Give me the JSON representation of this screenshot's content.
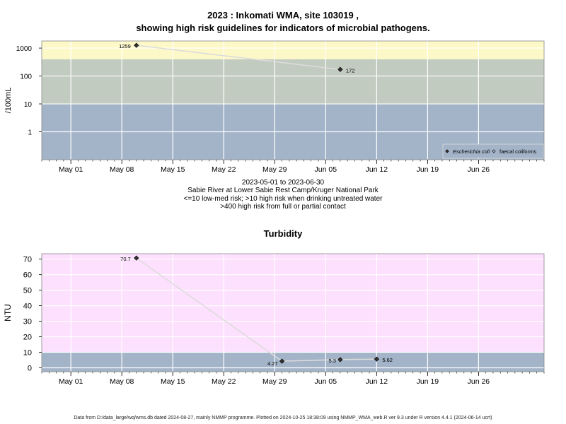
{
  "header": {
    "title_line1": "2023 : Inkomati WMA, site 103019 ,",
    "title_line2": "showing high risk guidelines for indicators of microbial pathogens."
  },
  "microbial_caption": {
    "date_range": "2023-05-01 to 2023-06-30",
    "site_name": "Sabie River at Lower Sabie Rest Camp/Kruger National Park",
    "guideline_1": "<=10 low-med risk; >10 high risk when drinking untreated water",
    "guideline_2": ">400 high risk from full or partial contact"
  },
  "turbidity_title": "Turbidity",
  "footer": "Data from D:/data_large/wq/wms.db dated 2024-08-27, mainly NMMP programme. Plotted on 2024-10-25 18:38:09 using NMMP_WMA_web.R ver 9.3 under R version 4.4.1 (2024-06-14 ucrt)",
  "colors": {
    "band_yellow": "#fdf8c8",
    "band_green": "#c2cbbf",
    "band_blue": "#a3b3c8",
    "band_pink": "#fde0fd",
    "grid": "#ffffff",
    "line": "#dcdcdc",
    "point": "#333333"
  },
  "chart_data": [
    {
      "type": "line",
      "ylabel": "/100mL",
      "y_scale": "log",
      "ylim": [
        0.1,
        1800
      ],
      "yticks": [
        1,
        10,
        100,
        1000
      ],
      "ytick_labels": [
        "1",
        "10",
        "100",
        "1000"
      ],
      "xlim": [
        "2023-04-27",
        "2023-07-05"
      ],
      "xticks": [
        "2023-05-01",
        "2023-05-08",
        "2023-05-15",
        "2023-05-22",
        "2023-05-29",
        "2023-06-05",
        "2023-06-12",
        "2023-06-19",
        "2023-06-26"
      ],
      "xtick_labels": [
        "May 01",
        "May 08",
        "May 15",
        "May 22",
        "May 29",
        "Jun 05",
        "Jun 12",
        "Jun 19",
        "Jun 26"
      ],
      "bands": [
        {
          "from": 0.1,
          "to": 10,
          "color": "blue"
        },
        {
          "from": 10,
          "to": 400,
          "color": "green"
        },
        {
          "from": 400,
          "to": 1800,
          "color": "yellow"
        }
      ],
      "series": [
        {
          "name": "Escherichia coli",
          "marker": "filled-diamond",
          "x": [
            "2023-05-10",
            "2023-06-07"
          ],
          "y": [
            1259,
            172
          ],
          "labels": [
            "1259",
            "172"
          ]
        },
        {
          "name": "faecal coliforms",
          "marker": "open-diamond",
          "x": [],
          "y": [],
          "labels": []
        }
      ],
      "grid": true,
      "legend_position": "bottom-right"
    },
    {
      "type": "line",
      "ylabel": "NTU",
      "ylim": [
        -2.5,
        73.5
      ],
      "yticks": [
        0,
        10,
        20,
        30,
        40,
        50,
        60,
        70
      ],
      "ytick_labels": [
        "0",
        "10",
        "20",
        "30",
        "40",
        "50",
        "60",
        "70"
      ],
      "xlim": [
        "2023-04-27",
        "2023-07-05"
      ],
      "xticks": [
        "2023-05-01",
        "2023-05-08",
        "2023-05-15",
        "2023-05-22",
        "2023-05-29",
        "2023-06-05",
        "2023-06-12",
        "2023-06-19",
        "2023-06-26"
      ],
      "xtick_labels": [
        "May 01",
        "May 08",
        "May 15",
        "May 22",
        "May 29",
        "Jun 05",
        "Jun 12",
        "Jun 19",
        "Jun 26"
      ],
      "bands": [
        {
          "from": -2.5,
          "to": 10,
          "color": "blue"
        },
        {
          "from": 10,
          "to": 73.5,
          "color": "pink"
        }
      ],
      "series": [
        {
          "x": [
            "2023-05-10",
            "2023-05-30",
            "2023-06-07",
            "2023-06-12"
          ],
          "y": [
            70.7,
            4.27,
            5.3,
            5.62
          ],
          "labels": [
            "70.7",
            "4.27",
            "5.3",
            "5.62"
          ]
        }
      ],
      "grid": true
    }
  ]
}
